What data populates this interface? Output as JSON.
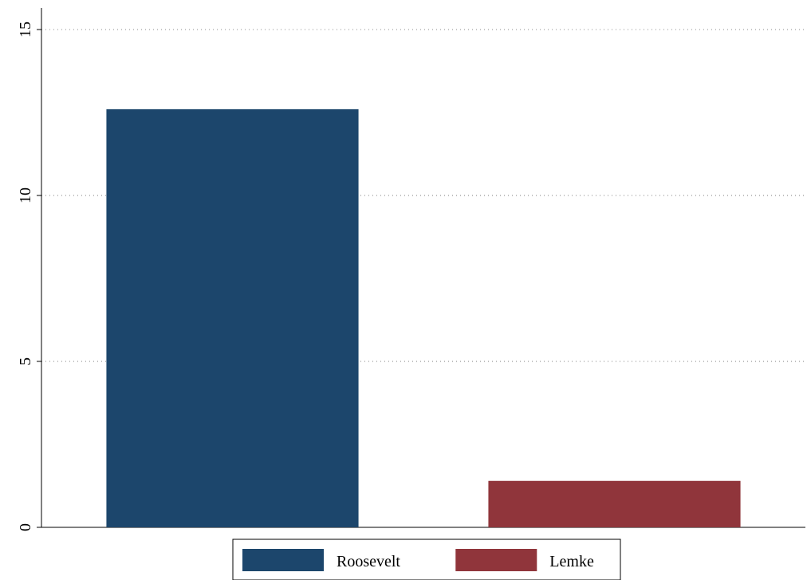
{
  "chart_data": {
    "type": "bar",
    "series": [
      {
        "name": "Roosevelt",
        "color": "#1c466c",
        "values": [
          12.6
        ]
      },
      {
        "name": "Lemke",
        "color": "#90353b",
        "values": [
          1.4
        ]
      }
    ],
    "ylim": [
      0,
      15.65
    ],
    "yticks": [
      0,
      5,
      10,
      15
    ],
    "grid": true,
    "legend": "bottom"
  }
}
